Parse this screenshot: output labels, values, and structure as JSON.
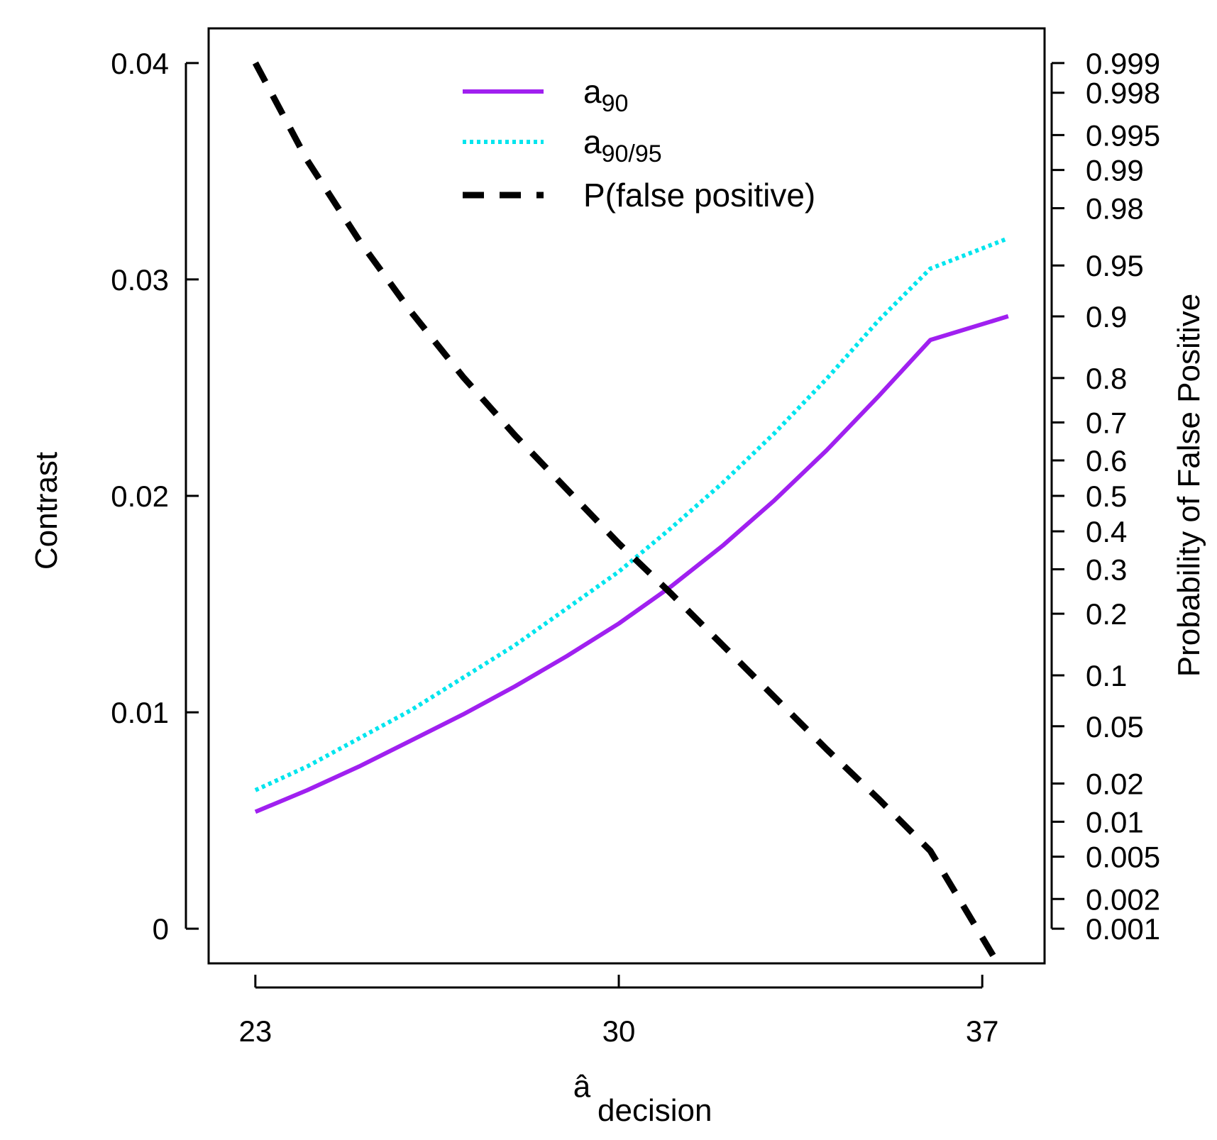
{
  "chart_data": {
    "type": "line",
    "xlabel": {
      "main": "â",
      "sub": "decision"
    },
    "ylabel": "Contrast",
    "y2label": "Probability of False Positive",
    "xlim": [
      22.1,
      38.2
    ],
    "ylim": [
      -0.0016,
      0.0416
    ],
    "x_ticks": [
      {
        "value": 23,
        "label": "23"
      },
      {
        "value": 30,
        "label": "30"
      },
      {
        "value": 37,
        "label": "37"
      }
    ],
    "y_ticks": [
      {
        "value": 0,
        "label": "0"
      },
      {
        "value": 0.01,
        "label": "0.01"
      },
      {
        "value": 0.02,
        "label": "0.02"
      },
      {
        "value": 0.03,
        "label": "0.03"
      },
      {
        "value": 0.04,
        "label": "0.04"
      }
    ],
    "y2_ticks": [
      {
        "value": 0.999,
        "label": "0.999"
      },
      {
        "value": 0.998,
        "label": "0.998"
      },
      {
        "value": 0.995,
        "label": "0.995"
      },
      {
        "value": 0.99,
        "label": "0.99"
      },
      {
        "value": 0.98,
        "label": "0.98"
      },
      {
        "value": 0.95,
        "label": "0.95"
      },
      {
        "value": 0.9,
        "label": "0.9"
      },
      {
        "value": 0.8,
        "label": "0.8"
      },
      {
        "value": 0.7,
        "label": "0.7"
      },
      {
        "value": 0.6,
        "label": "0.6"
      },
      {
        "value": 0.5,
        "label": "0.5"
      },
      {
        "value": 0.4,
        "label": "0.4"
      },
      {
        "value": 0.3,
        "label": "0.3"
      },
      {
        "value": 0.2,
        "label": "0.2"
      },
      {
        "value": 0.1,
        "label": "0.1"
      },
      {
        "value": 0.05,
        "label": "0.05"
      },
      {
        "value": 0.02,
        "label": "0.02"
      },
      {
        "value": 0.01,
        "label": "0.01"
      },
      {
        "value": 0.005,
        "label": "0.005"
      },
      {
        "value": 0.002,
        "label": "0.002"
      },
      {
        "value": 0.001,
        "label": "0.001"
      }
    ],
    "series": [
      {
        "name": "a90",
        "legend_main": "a",
        "legend_sub": "90",
        "color": "#a020f0",
        "style": "solid",
        "x": [
          23,
          24,
          25,
          26,
          27,
          28,
          29,
          30,
          31,
          32,
          33,
          34,
          35,
          36,
          37.5
        ],
        "y": [
          0.0054,
          0.0064,
          0.0075,
          0.0087,
          0.0099,
          0.0112,
          0.0126,
          0.0141,
          0.0158,
          0.0177,
          0.0198,
          0.0221,
          0.0246,
          0.0272,
          0.0283
        ]
      },
      {
        "name": "a90/95",
        "legend_main": "a",
        "legend_sub": "90/95",
        "color": "#00e5ee",
        "style": "dotted",
        "x": [
          23,
          24,
          25,
          26,
          27,
          28,
          29,
          30,
          31,
          32,
          33,
          34,
          35,
          36,
          37.5
        ],
        "y": [
          0.0064,
          0.0075,
          0.0088,
          0.0101,
          0.0116,
          0.0131,
          0.0148,
          0.0165,
          0.0185,
          0.0206,
          0.0229,
          0.0254,
          0.0281,
          0.0305,
          0.0319
        ]
      },
      {
        "name": "P(false positive)",
        "legend_main": "P(false positive)",
        "legend_sub": "",
        "color": "#000000",
        "style": "dashed",
        "axis": "right",
        "x": [
          23,
          24,
          25,
          26,
          27,
          28,
          29,
          30,
          31,
          32,
          33,
          34,
          35,
          36,
          37.3
        ],
        "y_contrast_scale": [
          0.04,
          0.0355,
          0.0318,
          0.0285,
          0.0255,
          0.0228,
          0.0203,
          0.0178,
          0.0155,
          0.0131,
          0.0107,
          0.0083,
          0.006,
          0.0036,
          -0.0016
        ]
      }
    ]
  }
}
